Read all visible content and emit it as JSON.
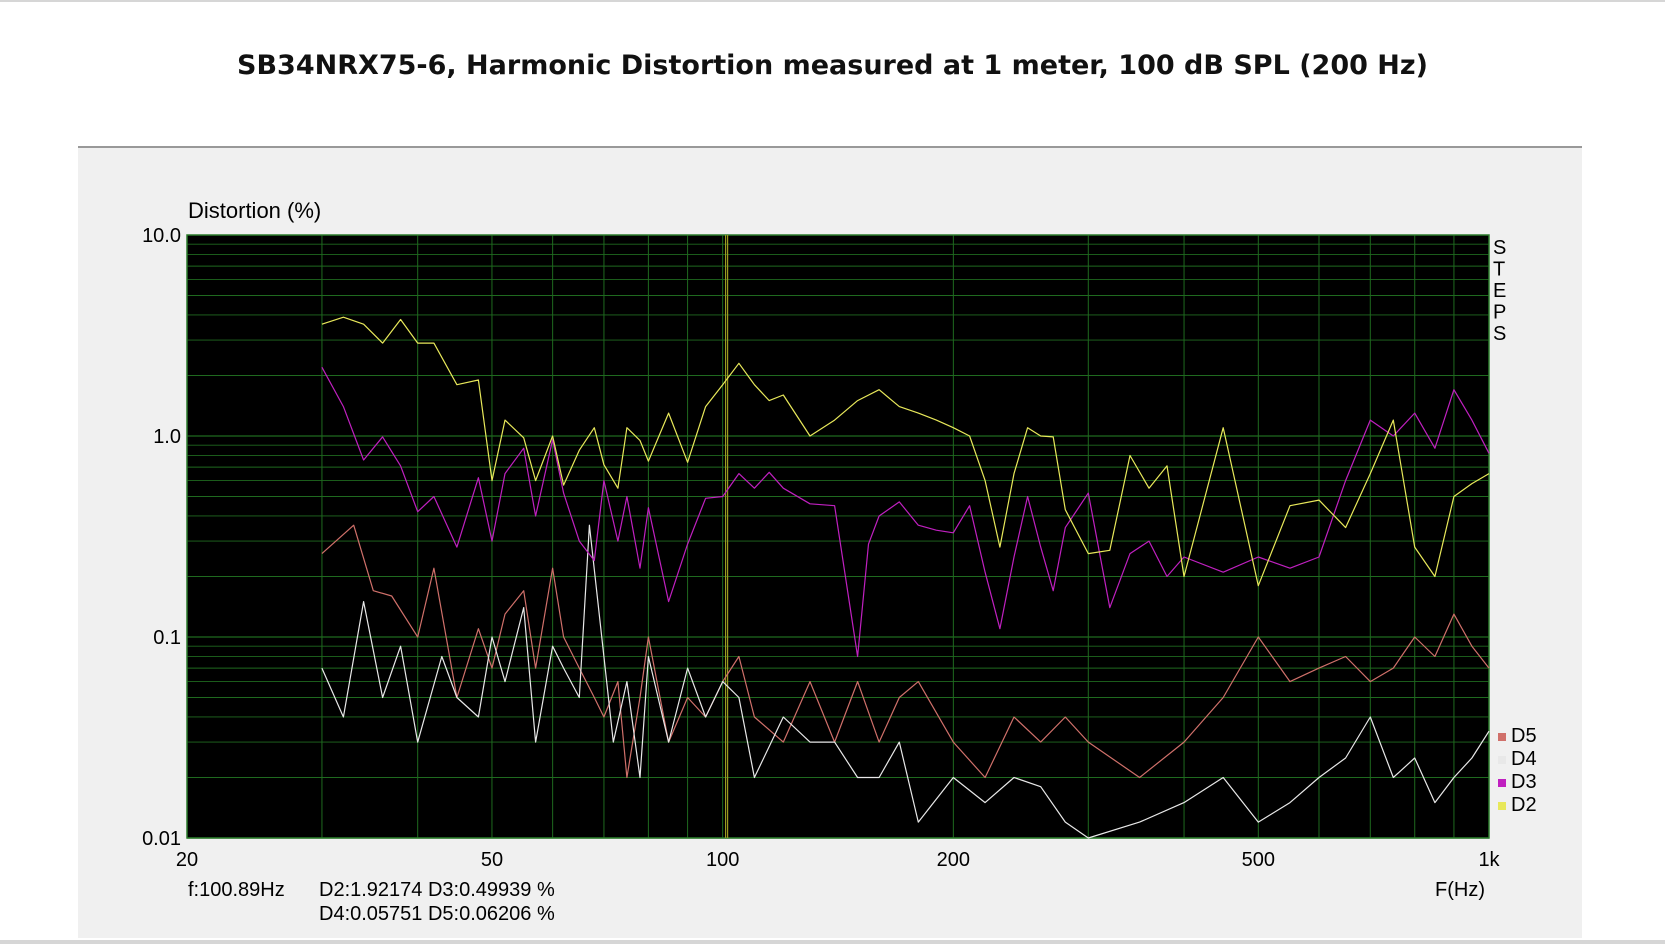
{
  "title": "SB34NRX75-6,  Harmonic Distortion measured at 1 meter, 100 dB SPL (200 Hz)",
  "side_label": "STEPS",
  "cursor": {
    "freq_text": "f:100.89Hz",
    "line1": "D2:1.92174  D3:0.49939 %",
    "line2": "D4:0.05751  D5:0.06206   %",
    "freq": 100.89
  },
  "colors": {
    "plot_bg": "#000000",
    "grid": "#1f6a1f",
    "cursor": "#9a9a20",
    "D2": "#e8e85a",
    "D3": "#c020c0",
    "D4": "#e8e8e8",
    "D5": "#d0706a"
  },
  "chart_data": {
    "type": "line",
    "title": "SB34NRX75-6,  Harmonic Distortion measured at 1 meter, 100 dB SPL (200 Hz)",
    "xlabel": "F(Hz)",
    "ylabel": "Distortion (%)",
    "xscale": "log",
    "yscale": "log",
    "xlim": [
      20,
      1000
    ],
    "ylim": [
      0.01,
      10
    ],
    "x_ticks": [
      {
        "value": 20,
        "label": "20"
      },
      {
        "value": 50,
        "label": "50"
      },
      {
        "value": 100,
        "label": "100"
      },
      {
        "value": 200,
        "label": "200"
      },
      {
        "value": 500,
        "label": "500"
      },
      {
        "value": 1000,
        "label": "1k"
      }
    ],
    "y_ticks": [
      {
        "value": 10,
        "label": "10.0"
      },
      {
        "value": 1,
        "label": "1.0"
      },
      {
        "value": 0.1,
        "label": "0.1"
      },
      {
        "value": 0.01,
        "label": "0.01"
      }
    ],
    "grid": true,
    "legend_position": "bottom-right",
    "series": [
      {
        "name": "D5",
        "color": "#d0706a",
        "x": [
          30,
          33,
          35,
          37,
          40,
          42,
          45,
          48,
          50,
          52,
          55,
          57,
          60,
          62,
          65,
          68,
          70,
          73,
          75,
          78,
          80,
          85,
          90,
          95,
          100,
          105,
          110,
          120,
          130,
          140,
          150,
          160,
          170,
          180,
          200,
          220,
          240,
          260,
          280,
          300,
          350,
          400,
          450,
          500,
          550,
          600,
          650,
          700,
          750,
          800,
          850,
          900,
          950,
          1000
        ],
        "y": [
          0.26,
          0.36,
          0.17,
          0.16,
          0.1,
          0.22,
          0.05,
          0.11,
          0.07,
          0.13,
          0.17,
          0.07,
          0.22,
          0.1,
          0.07,
          0.05,
          0.04,
          0.06,
          0.02,
          0.05,
          0.1,
          0.03,
          0.05,
          0.04,
          0.06,
          0.08,
          0.04,
          0.03,
          0.06,
          0.03,
          0.06,
          0.03,
          0.05,
          0.06,
          0.03,
          0.02,
          0.04,
          0.03,
          0.04,
          0.03,
          0.02,
          0.03,
          0.05,
          0.1,
          0.06,
          0.07,
          0.08,
          0.06,
          0.07,
          0.1,
          0.08,
          0.13,
          0.09,
          0.07
        ]
      },
      {
        "name": "D4",
        "color": "#e8e8e8",
        "x": [
          30,
          32,
          34,
          36,
          38,
          40,
          43,
          45,
          48,
          50,
          52,
          55,
          57,
          60,
          62,
          65,
          67,
          70,
          72,
          75,
          78,
          80,
          85,
          90,
          95,
          100,
          105,
          110,
          120,
          130,
          140,
          150,
          160,
          170,
          180,
          200,
          220,
          240,
          260,
          280,
          300,
          350,
          400,
          450,
          500,
          550,
          600,
          650,
          700,
          750,
          800,
          850,
          900,
          950,
          1000
        ],
        "y": [
          0.07,
          0.04,
          0.15,
          0.05,
          0.09,
          0.03,
          0.08,
          0.05,
          0.04,
          0.1,
          0.06,
          0.14,
          0.03,
          0.09,
          0.07,
          0.05,
          0.36,
          0.08,
          0.03,
          0.06,
          0.02,
          0.08,
          0.03,
          0.07,
          0.04,
          0.06,
          0.05,
          0.02,
          0.04,
          0.03,
          0.03,
          0.02,
          0.02,
          0.03,
          0.012,
          0.02,
          0.015,
          0.02,
          0.018,
          0.012,
          0.01,
          0.012,
          0.015,
          0.02,
          0.012,
          0.015,
          0.02,
          0.025,
          0.04,
          0.02,
          0.025,
          0.015,
          0.02,
          0.025,
          0.034
        ]
      },
      {
        "name": "D3",
        "color": "#c020c0",
        "x": [
          30,
          32,
          34,
          36,
          38,
          40,
          42,
          45,
          48,
          50,
          52,
          55,
          57,
          60,
          62,
          65,
          68,
          70,
          73,
          75,
          78,
          80,
          85,
          90,
          95,
          100,
          105,
          110,
          115,
          120,
          130,
          140,
          150,
          155,
          160,
          170,
          180,
          190,
          200,
          210,
          220,
          230,
          240,
          250,
          260,
          270,
          280,
          300,
          320,
          340,
          360,
          380,
          400,
          450,
          500,
          550,
          600,
          650,
          700,
          750,
          800,
          850,
          900,
          950,
          1000
        ],
        "y": [
          2.2,
          1.4,
          0.76,
          0.99,
          0.71,
          0.42,
          0.5,
          0.28,
          0.62,
          0.3,
          0.65,
          0.87,
          0.4,
          0.96,
          0.52,
          0.3,
          0.24,
          0.6,
          0.3,
          0.5,
          0.22,
          0.44,
          0.15,
          0.29,
          0.49,
          0.5,
          0.65,
          0.55,
          0.66,
          0.55,
          0.46,
          0.45,
          0.08,
          0.29,
          0.4,
          0.47,
          0.36,
          0.34,
          0.33,
          0.45,
          0.21,
          0.11,
          0.25,
          0.5,
          0.28,
          0.17,
          0.35,
          0.52,
          0.14,
          0.26,
          0.3,
          0.2,
          0.25,
          0.21,
          0.25,
          0.22,
          0.25,
          0.6,
          1.2,
          1.0,
          1.3,
          0.87,
          1.7,
          1.2,
          0.82
        ]
      },
      {
        "name": "D2",
        "color": "#e8e85a",
        "x": [
          30,
          32,
          34,
          36,
          38,
          40,
          42,
          45,
          48,
          50,
          52,
          55,
          57,
          60,
          62,
          65,
          68,
          70,
          73,
          75,
          78,
          80,
          85,
          90,
          95,
          100,
          105,
          110,
          115,
          120,
          130,
          140,
          150,
          160,
          170,
          180,
          190,
          200,
          210,
          220,
          230,
          240,
          250,
          260,
          270,
          280,
          300,
          320,
          340,
          360,
          380,
          400,
          450,
          500,
          550,
          600,
          650,
          700,
          750,
          800,
          850,
          900,
          950,
          1000
        ],
        "y": [
          3.6,
          3.9,
          3.6,
          2.9,
          3.8,
          2.9,
          2.9,
          1.8,
          1.9,
          0.6,
          1.2,
          0.98,
          0.6,
          1.0,
          0.57,
          0.85,
          1.1,
          0.72,
          0.55,
          1.1,
          0.95,
          0.75,
          1.3,
          0.74,
          1.4,
          1.8,
          2.3,
          1.8,
          1.5,
          1.6,
          1.0,
          1.2,
          1.5,
          1.7,
          1.4,
          1.3,
          1.2,
          1.1,
          1.0,
          0.6,
          0.28,
          0.65,
          1.1,
          1.0,
          0.99,
          0.43,
          0.26,
          0.27,
          0.8,
          0.55,
          0.71,
          0.2,
          1.1,
          0.18,
          0.45,
          0.48,
          0.35,
          0.65,
          1.2,
          0.28,
          0.2,
          0.5,
          0.58,
          0.65
        ]
      }
    ]
  }
}
